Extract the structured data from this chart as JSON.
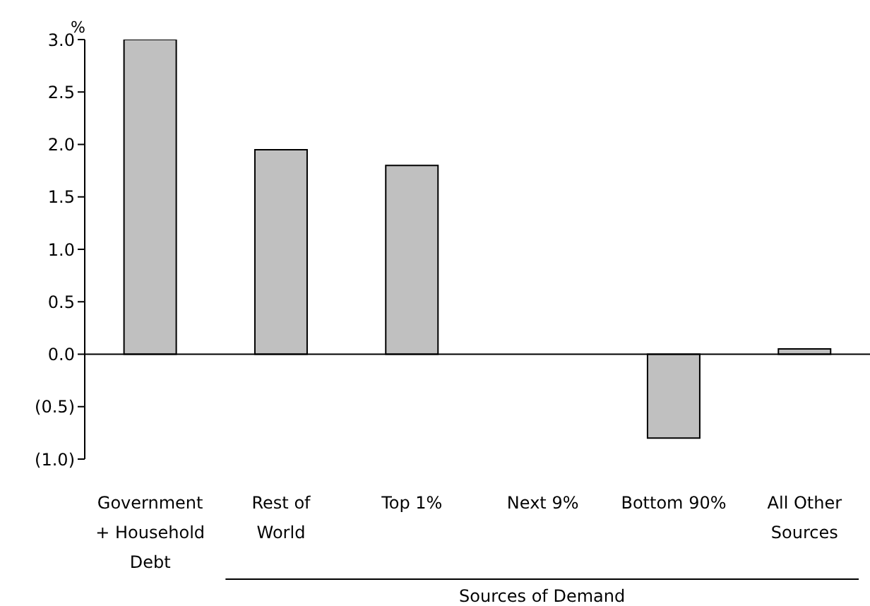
{
  "chart_data": {
    "type": "bar",
    "ylabel": "%",
    "xlabel": "Sources of Demand",
    "categories": [
      "Government + Household Debt",
      "Rest of World",
      "Top 1%",
      "Next 9%",
      "Bottom 90%",
      "All Other Sources"
    ],
    "values": [
      3.0,
      1.95,
      1.8,
      0,
      -0.8,
      0.05
    ],
    "color": "#c0c0c0",
    "ylim": [
      -1,
      3
    ],
    "yticks": [
      {
        "value": -1,
        "label": "(1.0)"
      },
      {
        "value": -0.5,
        "label": "(0.5)"
      },
      {
        "value": 0,
        "label": "0.0"
      },
      {
        "value": 0.5,
        "label": "0.5"
      },
      {
        "value": 1,
        "label": "1.0"
      },
      {
        "value": 1.5,
        "label": "1.5"
      },
      {
        "value": 2,
        "label": "2.0"
      },
      {
        "value": 2.5,
        "label": "2.5"
      },
      {
        "value": 3,
        "label": "3.0"
      }
    ],
    "legend": false
  }
}
